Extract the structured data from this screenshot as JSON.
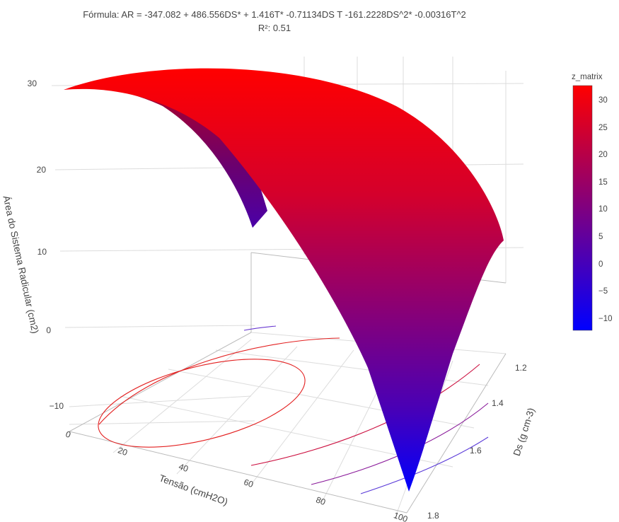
{
  "chart_data": {
    "type": "surface",
    "title_line1": "Fórmula: AR = -347.082 + 486.556DS* + 1.416T*  -0.71134DS T  -161.2228DS^2*  -0.00316T^2",
    "title_line2": "R²: 0.51",
    "formula": {
      "intercept": -347.082,
      "ds": 486.556,
      "t": 1.416,
      "ds_t": -0.71134,
      "ds2": -161.2228,
      "t2": -0.00316
    },
    "x_axis": {
      "label": "Tensão (cmH2O)",
      "range": [
        0,
        100
      ],
      "ticks": [
        "0",
        "20",
        "40",
        "60",
        "80",
        "100"
      ]
    },
    "y_axis": {
      "label": "Ds (g cm-3)",
      "range": [
        1.2,
        1.8
      ],
      "ticks": [
        "1.2",
        "1.4",
        "1.6",
        "1.8"
      ]
    },
    "z_axis": {
      "label": "Área do Sistema Radicular (cm2)",
      "range": [
        -12,
        32
      ],
      "ticks": [
        "−10",
        "0",
        "10",
        "20",
        "30"
      ]
    },
    "colorbar": {
      "title": "z_matrix",
      "range": [
        -12,
        32
      ],
      "ticks": [
        "30",
        "25",
        "20",
        "15",
        "10",
        "5",
        "0",
        "−5",
        "−10"
      ],
      "colorscale": [
        "#0000ff",
        "#ff0000"
      ]
    },
    "projected_contours": true,
    "grid": true
  }
}
